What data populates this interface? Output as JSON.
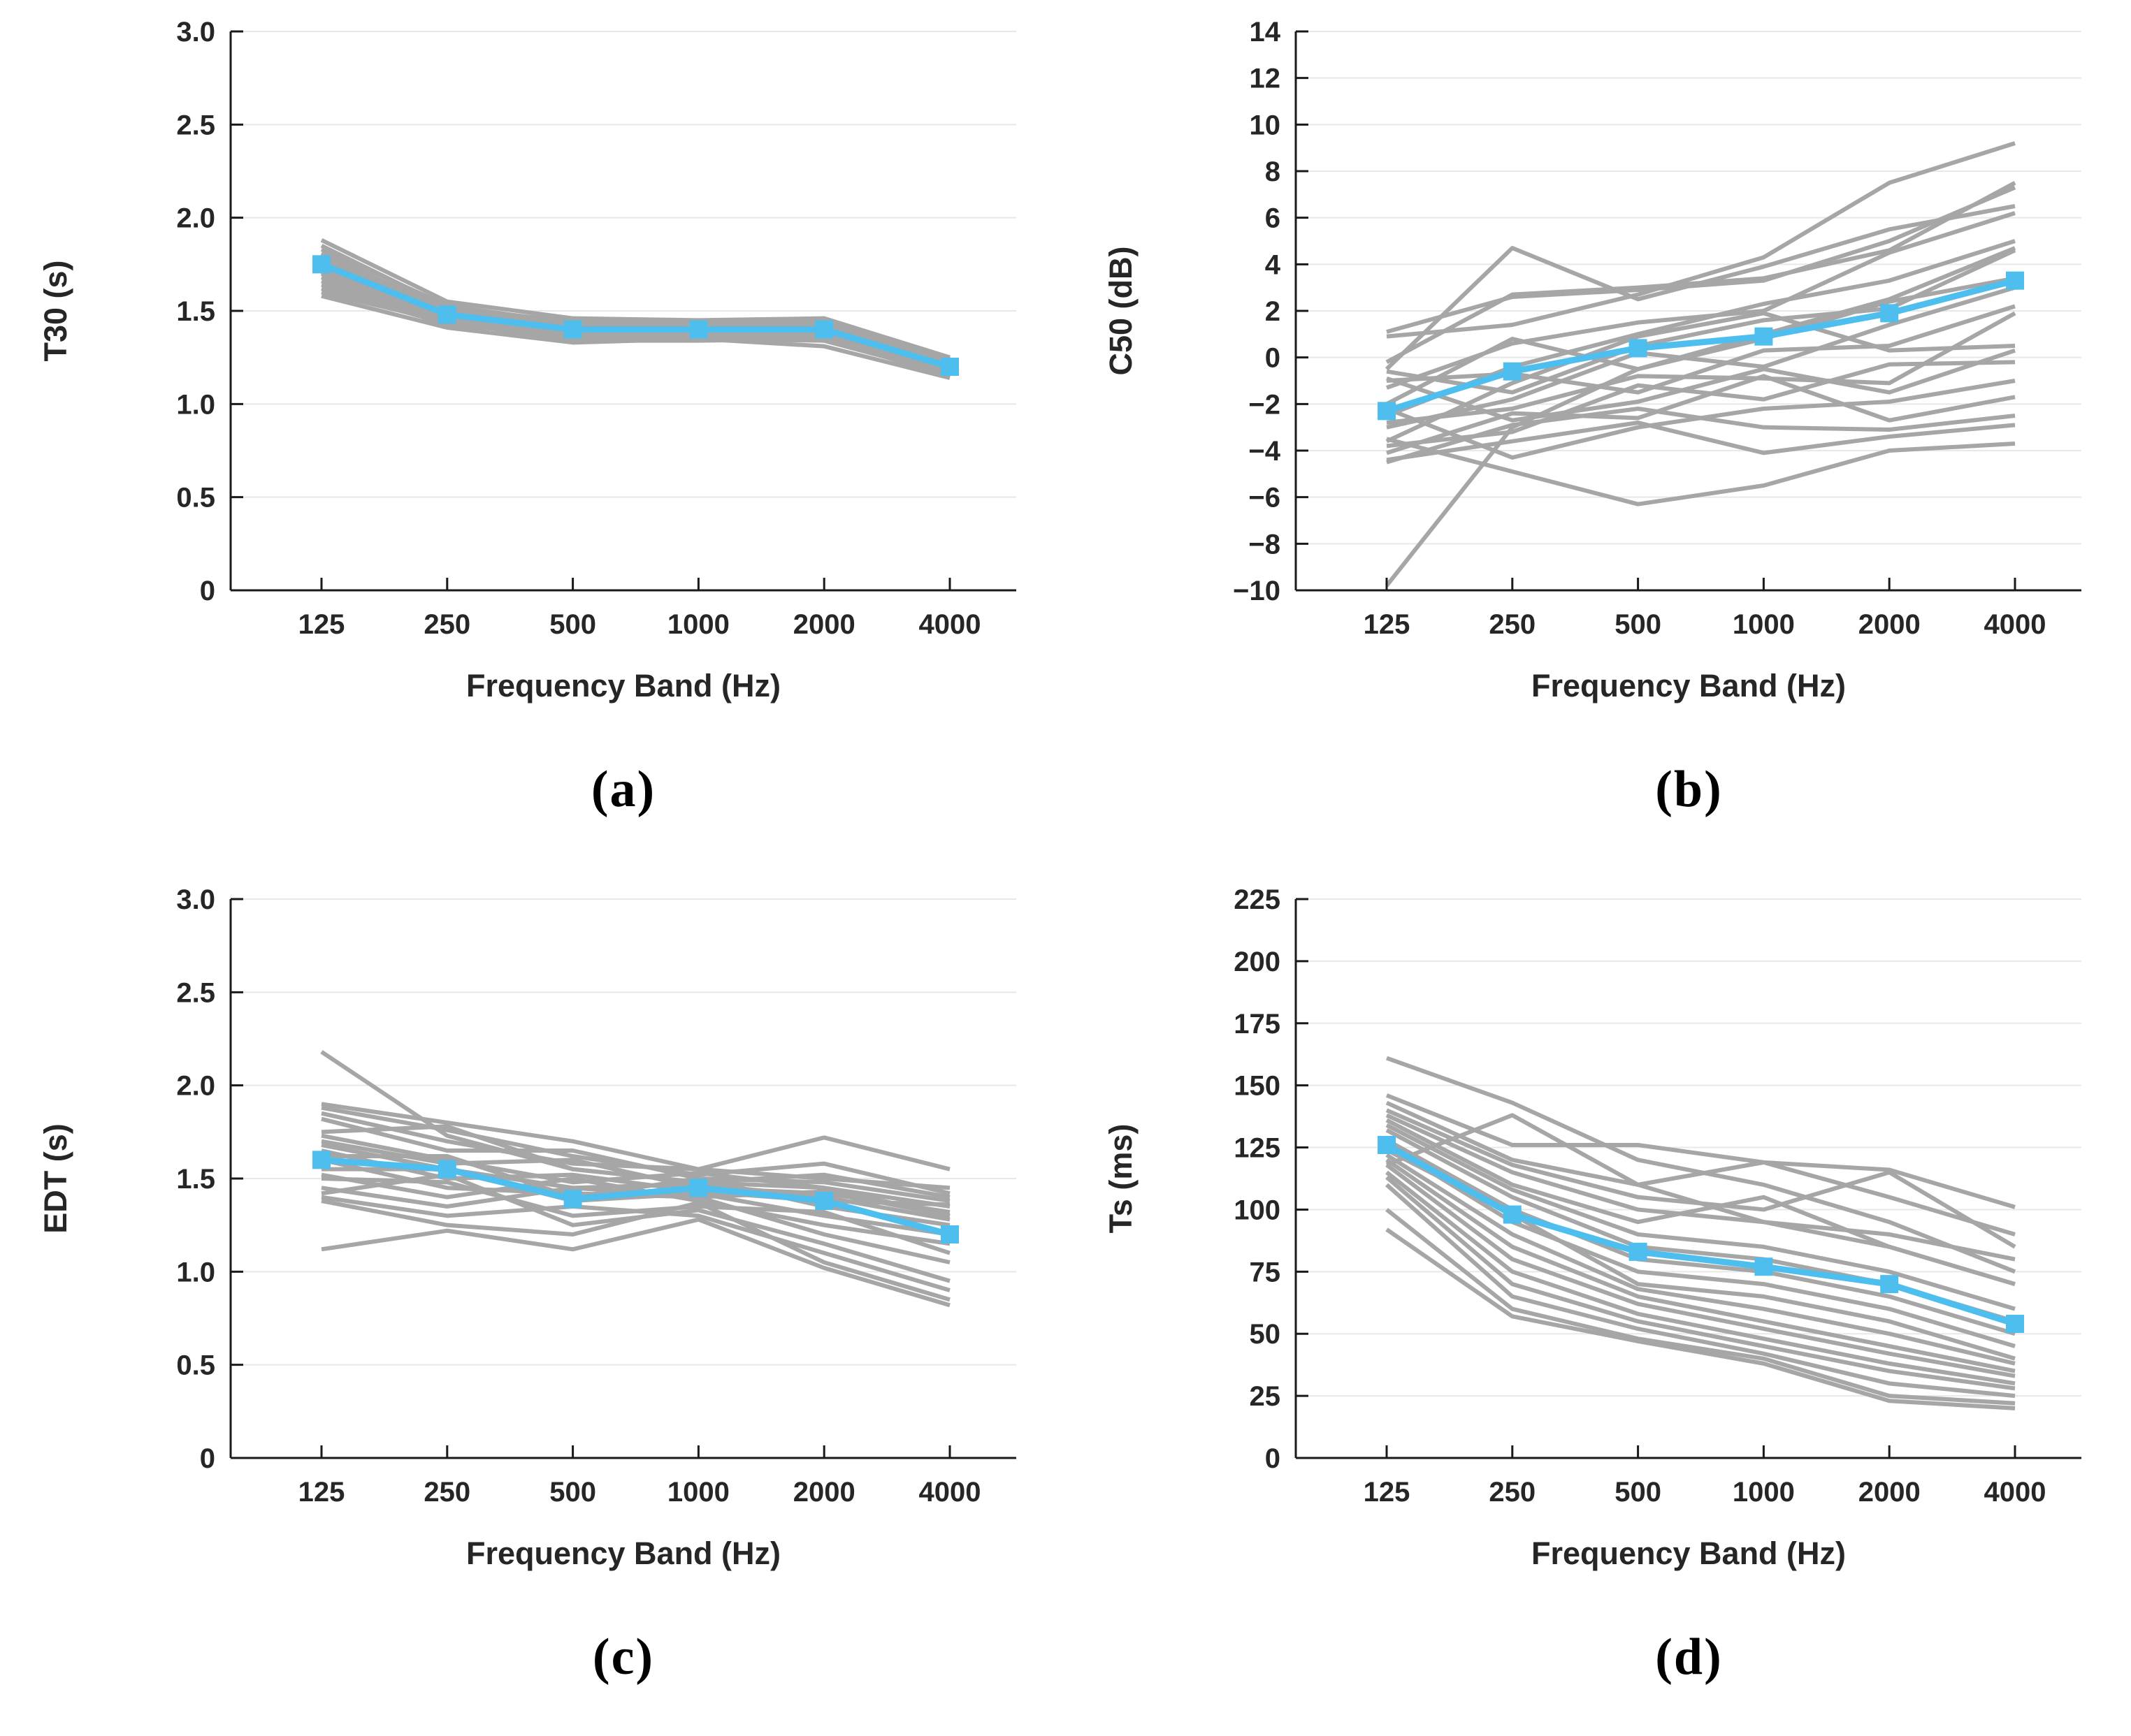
{
  "figure": {
    "xlabel": "Frequency Band (Hz)",
    "captions": {
      "a": "(a)",
      "b": "(b)",
      "c": "(c)",
      "d": "(d)"
    }
  },
  "colors": {
    "mean": "#4DBEEE",
    "series": "#A6A6A6",
    "axis": "#1a1a1a",
    "grid": "#E8E8E8",
    "text": "#262626"
  },
  "chart_data": [
    {
      "id": "a",
      "type": "line",
      "caption": "(a)",
      "xlabel": "Frequency Band (Hz)",
      "ylabel": "T30 (s)",
      "categories": [
        125,
        250,
        500,
        1000,
        2000,
        4000
      ],
      "xtick_labels": [
        "125",
        "250",
        "500",
        "1000",
        "2000",
        "4000"
      ],
      "ylim": [
        0,
        3
      ],
      "yticks": [
        0,
        0.5,
        1,
        1.5,
        2,
        2.5,
        3
      ],
      "ytick_labels": [
        "0",
        "0.5",
        "1.0",
        "1.5",
        "2.0",
        "2.5",
        "3.0"
      ],
      "grid": "horizontal",
      "legend": "none",
      "mean_series": {
        "name": "mean-across-positions",
        "values": [
          1.75,
          1.48,
          1.4,
          1.4,
          1.4,
          1.2
        ]
      },
      "series": [
        {
          "values": [
            1.88,
            1.55,
            1.46,
            1.45,
            1.46,
            1.25
          ]
        },
        {
          "values": [
            1.85,
            1.52,
            1.44,
            1.44,
            1.44,
            1.24
          ]
        },
        {
          "values": [
            1.83,
            1.53,
            1.43,
            1.42,
            1.43,
            1.23
          ]
        },
        {
          "values": [
            1.81,
            1.5,
            1.45,
            1.43,
            1.42,
            1.22
          ]
        },
        {
          "values": [
            1.8,
            1.51,
            1.43,
            1.42,
            1.44,
            1.24
          ]
        },
        {
          "values": [
            1.78,
            1.49,
            1.42,
            1.41,
            1.41,
            1.21
          ]
        },
        {
          "values": [
            1.77,
            1.47,
            1.4,
            1.41,
            1.42,
            1.22
          ]
        },
        {
          "values": [
            1.76,
            1.48,
            1.43,
            1.4,
            1.4,
            1.2
          ]
        },
        {
          "values": [
            1.75,
            1.46,
            1.39,
            1.39,
            1.41,
            1.21
          ]
        },
        {
          "values": [
            1.74,
            1.47,
            1.41,
            1.4,
            1.39,
            1.19
          ]
        },
        {
          "values": [
            1.73,
            1.45,
            1.38,
            1.38,
            1.38,
            1.19
          ]
        },
        {
          "values": [
            1.72,
            1.44,
            1.4,
            1.39,
            1.4,
            1.2
          ]
        },
        {
          "values": [
            1.71,
            1.46,
            1.37,
            1.37,
            1.37,
            1.18
          ]
        },
        {
          "values": [
            1.7,
            1.43,
            1.39,
            1.38,
            1.38,
            1.18
          ]
        },
        {
          "values": [
            1.68,
            1.44,
            1.36,
            1.36,
            1.37,
            1.17
          ]
        },
        {
          "values": [
            1.66,
            1.42,
            1.38,
            1.37,
            1.36,
            1.17
          ]
        },
        {
          "values": [
            1.64,
            1.45,
            1.35,
            1.36,
            1.35,
            1.16
          ]
        },
        {
          "values": [
            1.62,
            1.43,
            1.37,
            1.35,
            1.34,
            1.16
          ]
        },
        {
          "values": [
            1.6,
            1.44,
            1.34,
            1.34,
            1.35,
            1.15
          ]
        },
        {
          "values": [
            1.58,
            1.41,
            1.33,
            1.35,
            1.31,
            1.14
          ]
        }
      ]
    },
    {
      "id": "b",
      "type": "line",
      "caption": "(b)",
      "xlabel": "Frequency Band (Hz)",
      "ylabel": "C50 (dB)",
      "categories": [
        125,
        250,
        500,
        1000,
        2000,
        4000
      ],
      "xtick_labels": [
        "125",
        "250",
        "500",
        "1000",
        "2000",
        "4000"
      ],
      "ylim": [
        -10,
        14
      ],
      "yticks": [
        -10,
        -8,
        -6,
        -4,
        -2,
        0,
        2,
        4,
        6,
        8,
        10,
        12,
        14
      ],
      "ytick_labels": [
        "−10",
        "−8",
        "−6",
        "−4",
        "−2",
        "0",
        "2",
        "4",
        "6",
        "8",
        "10",
        "12",
        "14"
      ],
      "grid": "horizontal",
      "legend": "none",
      "mean_series": {
        "name": "mean-across-positions",
        "values": [
          -2.3,
          -0.6,
          0.4,
          0.9,
          1.9,
          3.3
        ]
      },
      "series": [
        {
          "values": [
            1.1,
            2.6,
            2.9,
            3.3,
            5.0,
            7.3
          ]
        },
        {
          "values": [
            -0.5,
            4.7,
            2.5,
            3.9,
            5.5,
            6.5
          ]
        },
        {
          "values": [
            0.9,
            1.4,
            2.7,
            4.3,
            7.5,
            9.2
          ]
        },
        {
          "values": [
            -0.2,
            2.7,
            3.0,
            3.4,
            4.6,
            7.5
          ]
        },
        {
          "values": [
            -1.3,
            0.6,
            1.5,
            2.0,
            4.5,
            6.2
          ]
        },
        {
          "values": [
            -2.5,
            -0.4,
            1.0,
            2.3,
            3.3,
            5.0
          ]
        },
        {
          "values": [
            -0.6,
            -1.5,
            0.5,
            1.6,
            2.1,
            4.6
          ]
        },
        {
          "values": [
            -2.0,
            0.8,
            -0.5,
            0.8,
            2.4,
            3.4
          ]
        },
        {
          "values": [
            -3.0,
            -1.8,
            0.2,
            -0.4,
            1.4,
            3.0
          ]
        },
        {
          "values": [
            -1.0,
            -0.7,
            -1.5,
            0.3,
            0.5,
            2.2
          ]
        },
        {
          "values": [
            -2.8,
            -2.2,
            -0.8,
            -0.9,
            -1.1,
            1.9
          ]
        },
        {
          "values": [
            -3.6,
            -1.1,
            0.9,
            1.9,
            0.3,
            0.5
          ]
        },
        {
          "values": [
            -0.9,
            -2.7,
            -1.9,
            -0.5,
            -1.5,
            0.3
          ]
        },
        {
          "values": [
            -3.8,
            -3.2,
            -1.2,
            -1.8,
            -0.3,
            -0.2
          ]
        },
        {
          "values": [
            -4.1,
            -2.4,
            -2.6,
            -0.8,
            -2.7,
            -1.7
          ]
        },
        {
          "values": [
            -2.2,
            -4.3,
            -3.0,
            -2.2,
            -1.9,
            -1.0
          ]
        },
        {
          "values": [
            -4.5,
            -2.9,
            -2.2,
            -3.0,
            -3.1,
            -2.5
          ]
        },
        {
          "values": [
            -3.5,
            -4.9,
            -6.3,
            -5.5,
            -4.0,
            -3.7
          ]
        },
        {
          "values": [
            -9.8,
            -3.0,
            -0.5,
            1.0,
            2.5,
            4.7
          ]
        },
        {
          "values": [
            -4.4,
            -3.6,
            -2.8,
            -4.1,
            -3.4,
            -2.9
          ]
        }
      ]
    },
    {
      "id": "c",
      "type": "line",
      "caption": "(c)",
      "xlabel": "Frequency Band (Hz)",
      "ylabel": "EDT (s)",
      "categories": [
        125,
        250,
        500,
        1000,
        2000,
        4000
      ],
      "xtick_labels": [
        "125",
        "250",
        "500",
        "1000",
        "2000",
        "4000"
      ],
      "ylim": [
        0,
        3
      ],
      "yticks": [
        0,
        0.5,
        1,
        1.5,
        2,
        2.5,
        3
      ],
      "ytick_labels": [
        "0",
        "0.5",
        "1.0",
        "1.5",
        "2.0",
        "2.5",
        "3.0"
      ],
      "grid": "horizontal",
      "legend": "none",
      "mean_series": {
        "name": "mean-across-positions",
        "values": [
          1.6,
          1.55,
          1.39,
          1.45,
          1.38,
          1.2
        ]
      },
      "series": [
        {
          "values": [
            2.18,
            1.73,
            1.55,
            1.48,
            1.45,
            1.3
          ]
        },
        {
          "values": [
            1.9,
            1.8,
            1.7,
            1.55,
            1.72,
            1.55
          ]
        },
        {
          "values": [
            1.88,
            1.76,
            1.62,
            1.52,
            1.58,
            1.42
          ]
        },
        {
          "values": [
            1.85,
            1.7,
            1.58,
            1.55,
            1.5,
            1.45
          ]
        },
        {
          "values": [
            1.82,
            1.65,
            1.65,
            1.5,
            1.48,
            1.38
          ]
        },
        {
          "values": [
            1.75,
            1.78,
            1.55,
            1.48,
            1.52,
            1.4
          ]
        },
        {
          "values": [
            1.73,
            1.6,
            1.48,
            1.53,
            1.45,
            1.35
          ]
        },
        {
          "values": [
            1.7,
            1.58,
            1.6,
            1.45,
            1.42,
            1.32
          ]
        },
        {
          "values": [
            1.68,
            1.55,
            1.45,
            1.47,
            1.4,
            1.28
          ]
        },
        {
          "values": [
            1.65,
            1.5,
            1.52,
            1.43,
            1.38,
            1.36
          ]
        },
        {
          "values": [
            1.62,
            1.62,
            1.4,
            1.5,
            1.35,
            1.25
          ]
        },
        {
          "values": [
            1.6,
            1.45,
            1.42,
            1.4,
            1.43,
            1.3
          ]
        },
        {
          "values": [
            1.55,
            1.55,
            1.38,
            1.42,
            1.3,
            1.2
          ]
        },
        {
          "values": [
            1.52,
            1.4,
            1.5,
            1.38,
            1.25,
            1.15
          ]
        },
        {
          "values": [
            1.5,
            1.48,
            1.3,
            1.35,
            1.32,
            1.1
          ]
        },
        {
          "values": [
            1.45,
            1.35,
            1.45,
            1.4,
            1.2,
            1.05
          ]
        },
        {
          "values": [
            1.42,
            1.52,
            1.25,
            1.33,
            1.15,
            0.95
          ]
        },
        {
          "values": [
            1.4,
            1.3,
            1.35,
            1.3,
            1.1,
            0.9
          ]
        },
        {
          "values": [
            1.38,
            1.25,
            1.2,
            1.37,
            1.05,
            0.85
          ]
        },
        {
          "values": [
            1.12,
            1.22,
            1.12,
            1.28,
            1.02,
            0.82
          ]
        }
      ]
    },
    {
      "id": "d",
      "type": "line",
      "caption": "(d)",
      "xlabel": "Frequency Band (Hz)",
      "ylabel": "Ts (ms)",
      "categories": [
        125,
        250,
        500,
        1000,
        2000,
        4000
      ],
      "xtick_labels": [
        "125",
        "250",
        "500",
        "1000",
        "2000",
        "4000"
      ],
      "ylim": [
        0,
        225
      ],
      "yticks": [
        0,
        25,
        50,
        75,
        100,
        125,
        150,
        175,
        200,
        225
      ],
      "ytick_labels": [
        "0",
        "25",
        "50",
        "75",
        "100",
        "125",
        "150",
        "175",
        "200",
        "225"
      ],
      "grid": "horizontal",
      "legend": "none",
      "mean_series": {
        "name": "mean-across-positions",
        "values": [
          126,
          98,
          83,
          77,
          70,
          54
        ]
      },
      "series": [
        {
          "values": [
            161,
            143,
            120,
            110,
            95,
            75
          ]
        },
        {
          "values": [
            146,
            126,
            126,
            119,
            116,
            101
          ]
        },
        {
          "values": [
            143,
            120,
            110,
            119,
            105,
            90
          ]
        },
        {
          "values": [
            140,
            118,
            105,
            100,
            115,
            85
          ]
        },
        {
          "values": [
            138,
            115,
            100,
            95,
            90,
            80
          ]
        },
        {
          "values": [
            136,
            110,
            95,
            105,
            85,
            70
          ]
        },
        {
          "values": [
            134,
            108,
            90,
            85,
            75,
            60
          ]
        },
        {
          "values": [
            132,
            105,
            85,
            80,
            70,
            55
          ]
        },
        {
          "values": [
            118,
            138,
            110,
            95,
            85,
            70
          ]
        },
        {
          "values": [
            128,
            100,
            80,
            75,
            65,
            50
          ]
        },
        {
          "values": [
            126,
            95,
            75,
            70,
            60,
            45
          ]
        },
        {
          "values": [
            124,
            98,
            70,
            65,
            55,
            40
          ]
        },
        {
          "values": [
            122,
            90,
            68,
            60,
            50,
            38
          ]
        },
        {
          "values": [
            120,
            85,
            65,
            55,
            45,
            35
          ]
        },
        {
          "values": [
            118,
            80,
            62,
            52,
            42,
            33
          ]
        },
        {
          "values": [
            115,
            75,
            58,
            48,
            38,
            30
          ]
        },
        {
          "values": [
            113,
            70,
            55,
            45,
            35,
            28
          ]
        },
        {
          "values": [
            110,
            65,
            52,
            42,
            30,
            25
          ]
        },
        {
          "values": [
            100,
            60,
            48,
            40,
            25,
            22
          ]
        },
        {
          "values": [
            92,
            57,
            47,
            38,
            23,
            20
          ]
        }
      ]
    }
  ]
}
